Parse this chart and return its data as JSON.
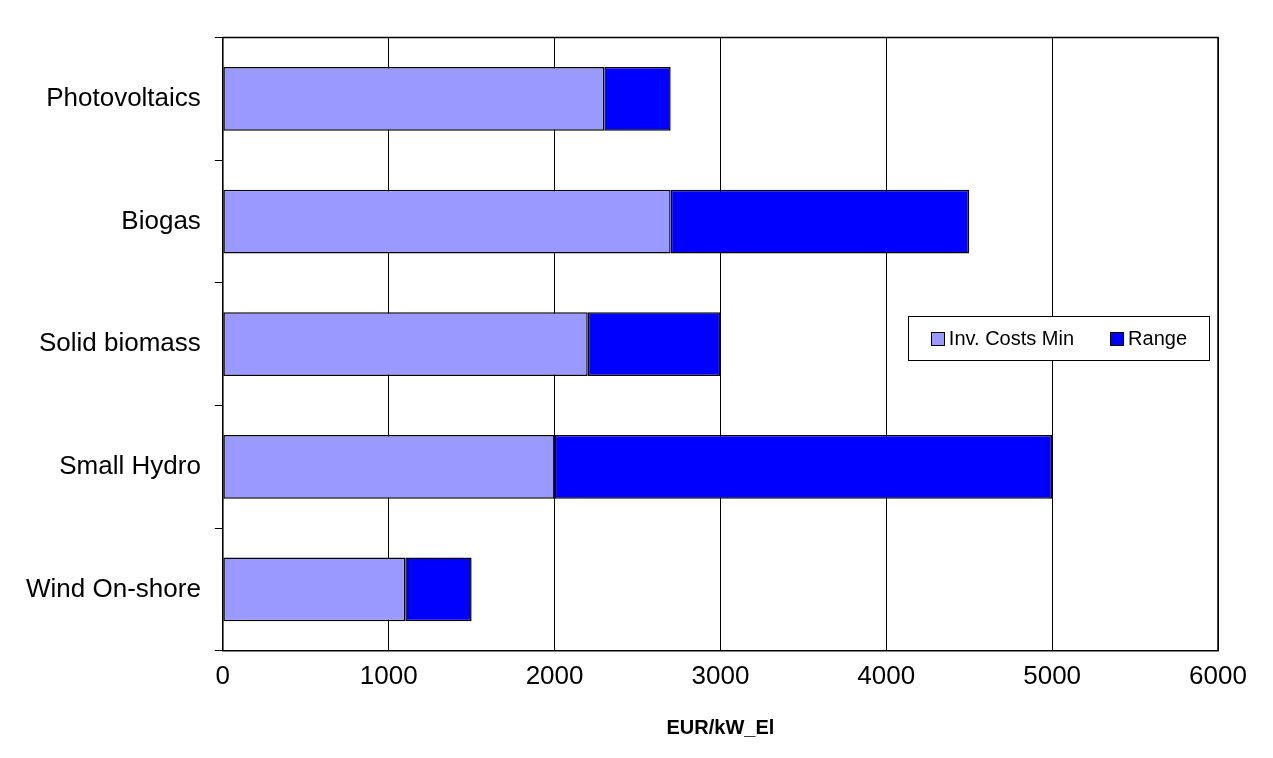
{
  "chart_data": {
    "type": "bar",
    "orientation": "horizontal",
    "stacked": true,
    "xlabel": "EUR/kW_El",
    "categories": [
      "Photovoltaics",
      "Biogas",
      "Solid biomass",
      "Small Hydro",
      "Wind On-shore"
    ],
    "series": [
      {
        "name": "Inv. Costs Min",
        "color": "#9999ff",
        "values": [
          2300,
          2700,
          2200,
          2000,
          1100
        ]
      },
      {
        "name": "Range",
        "color": "#0000ff",
        "values": [
          400,
          1800,
          800,
          3000,
          400
        ]
      }
    ],
    "xlim": [
      0,
      6000
    ],
    "xticks": [
      0,
      1000,
      2000,
      3000,
      4000,
      5000,
      6000
    ],
    "grid": "x",
    "legend": "right"
  }
}
